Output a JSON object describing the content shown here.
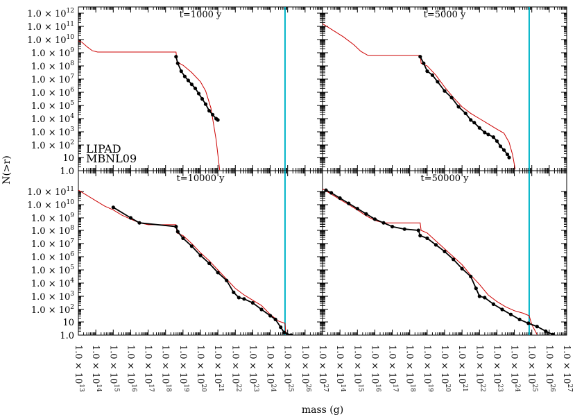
{
  "chart_data": {
    "type": "line",
    "title": "",
    "xlabel": "mass (g)",
    "ylabel": "N(>r)",
    "x_scale": "log",
    "y_scale": "log",
    "xlim_log10": [
      13,
      27
    ],
    "grid": false,
    "legend": [
      {
        "name": "LIPAD",
        "color": "#000000"
      },
      {
        "name": "MBNL09",
        "color": "#cc0000"
      }
    ],
    "panels": [
      {
        "title": "t=1000 y",
        "ylim_log10": [
          0,
          12.5
        ],
        "cutoff_mass_log10": 24.85,
        "yticks": [
          {
            "log": 0,
            "label": "1.0"
          },
          {
            "log": 1,
            "label": "10"
          },
          {
            "log": 2,
            "base": "1.0 × 10",
            "exp": "2"
          },
          {
            "log": 3,
            "base": "1.0 × 10",
            "exp": "3"
          },
          {
            "log": 4,
            "base": "1.0 × 10",
            "exp": "4"
          },
          {
            "log": 5,
            "base": "1.0 × 10",
            "exp": "5"
          },
          {
            "log": 6,
            "base": "1.0 × 10",
            "exp": "6"
          },
          {
            "log": 7,
            "base": "1.0 × 10",
            "exp": "7"
          },
          {
            "log": 8,
            "base": "1.0 × 10",
            "exp": "8"
          },
          {
            "log": 9,
            "base": "1.0 × 10",
            "exp": "9"
          },
          {
            "log": 10,
            "base": "1.0 × 10",
            "exp": "10"
          },
          {
            "log": 11,
            "base": "1.0 × 10",
            "exp": "11"
          },
          {
            "log": 12,
            "base": "1.0 × 10",
            "exp": "12"
          }
        ],
        "series": [
          {
            "name": "MBNL09",
            "points": [
              [
                13,
                9.9
              ],
              [
                13.2,
                9.8
              ],
              [
                13.5,
                9.45
              ],
              [
                13.8,
                9.15
              ],
              [
                14.1,
                9.05
              ],
              [
                15,
                9.05
              ],
              [
                16.5,
                9.05
              ],
              [
                18.6,
                9.05
              ],
              [
                18.65,
                8.3
              ],
              [
                19,
                8.05
              ],
              [
                19.5,
                7.5
              ],
              [
                20,
                6.8
              ],
              [
                20.3,
                6.1
              ],
              [
                20.6,
                4.8
              ],
              [
                20.9,
                2.4
              ],
              [
                21.1,
                0.05
              ]
            ]
          },
          {
            "name": "LIPAD",
            "points": [
              [
                18.6,
                8.7
              ],
              [
                18.7,
                8.2
              ],
              [
                18.9,
                7.6
              ],
              [
                19.1,
                7.2
              ],
              [
                19.3,
                6.9
              ],
              [
                19.5,
                6.6
              ],
              [
                19.7,
                6.3
              ],
              [
                19.9,
                5.9
              ],
              [
                20.1,
                5.5
              ],
              [
                20.3,
                5.1
              ],
              [
                20.5,
                4.6
              ],
              [
                20.7,
                4.3
              ],
              [
                20.9,
                4.0
              ],
              [
                21.0,
                3.9
              ]
            ]
          }
        ]
      },
      {
        "title": "t=5000 y",
        "ylim_log10": [
          0,
          12.5
        ],
        "cutoff_mass_log10": 24.85,
        "yticks": [],
        "series": [
          {
            "name": "MBNL09",
            "points": [
              [
                13,
                11.2
              ],
              [
                13.6,
                10.7
              ],
              [
                14.2,
                10.2
              ],
              [
                14.8,
                9.6
              ],
              [
                15.2,
                9.1
              ],
              [
                15.6,
                8.8
              ],
              [
                16.5,
                8.8
              ],
              [
                18.6,
                8.8
              ],
              [
                18.65,
                8.2
              ],
              [
                19,
                8.0
              ],
              [
                19.5,
                7.3
              ],
              [
                20,
                6.4
              ],
              [
                20.5,
                5.6
              ],
              [
                21,
                4.9
              ],
              [
                21.5,
                4.4
              ],
              [
                22,
                4.0
              ],
              [
                22.5,
                3.6
              ],
              [
                23,
                3.2
              ],
              [
                23.4,
                2.9
              ],
              [
                23.7,
                2.2
              ],
              [
                23.9,
                1.2
              ],
              [
                24.05,
                0.1
              ]
            ]
          },
          {
            "name": "LIPAD",
            "points": [
              [
                18.6,
                8.7
              ],
              [
                18.8,
                8.2
              ],
              [
                19.0,
                7.6
              ],
              [
                19.3,
                7.3
              ],
              [
                19.6,
                6.8
              ],
              [
                20.0,
                6.1
              ],
              [
                20.4,
                5.6
              ],
              [
                20.8,
                4.9
              ],
              [
                21.2,
                4.4
              ],
              [
                21.5,
                3.9
              ],
              [
                21.7,
                3.7
              ],
              [
                22.0,
                3.3
              ],
              [
                22.3,
                2.95
              ],
              [
                22.5,
                2.8
              ],
              [
                22.8,
                2.6
              ],
              [
                23.0,
                2.3
              ],
              [
                23.2,
                1.9
              ],
              [
                23.4,
                1.6
              ],
              [
                23.6,
                1.25
              ],
              [
                23.7,
                1.0
              ]
            ]
          }
        ]
      },
      {
        "title": "t=10000 y",
        "ylim_log10": [
          0,
          11.6
        ],
        "cutoff_mass_log10": 24.85,
        "yticks": [
          {
            "log": 0,
            "label": "1.0"
          },
          {
            "log": 1,
            "label": "10"
          },
          {
            "log": 2,
            "base": "1.0 × 10",
            "exp": "2"
          },
          {
            "log": 3,
            "base": "1.0 × 10",
            "exp": "3"
          },
          {
            "log": 4,
            "base": "1.0 × 10",
            "exp": "4"
          },
          {
            "log": 5,
            "base": "1.0 × 10",
            "exp": "5"
          },
          {
            "log": 6,
            "base": "1.0 × 10",
            "exp": "6"
          },
          {
            "log": 7,
            "base": "1.0 × 10",
            "exp": "7"
          },
          {
            "log": 8,
            "base": "1.0 × 10",
            "exp": "8"
          },
          {
            "log": 9,
            "base": "1.0 × 10",
            "exp": "9"
          },
          {
            "log": 10,
            "base": "1.0 × 10",
            "exp": "10"
          },
          {
            "log": 11,
            "base": "1.0 × 10",
            "exp": "11"
          }
        ],
        "series": [
          {
            "name": "MBNL09",
            "points": [
              [
                13,
                11.1
              ],
              [
                13.5,
                10.7
              ],
              [
                14,
                10.3
              ],
              [
                14.5,
                9.9
              ],
              [
                15,
                9.6
              ],
              [
                15.5,
                9.2
              ],
              [
                16,
                8.9
              ],
              [
                16.5,
                8.6
              ],
              [
                17,
                8.45
              ],
              [
                18.6,
                8.45
              ],
              [
                18.65,
                7.8
              ],
              [
                19,
                7.6
              ],
              [
                19.5,
                7.0
              ],
              [
                20,
                6.3
              ],
              [
                20.5,
                5.7
              ],
              [
                21,
                5.0
              ],
              [
                21.5,
                4.3
              ],
              [
                22,
                3.6
              ],
              [
                22.5,
                3.1
              ],
              [
                23,
                2.7
              ],
              [
                23.5,
                2.3
              ],
              [
                24,
                1.6
              ],
              [
                24.5,
                1.05
              ],
              [
                24.85,
                0.9
              ],
              [
                24.9,
                0.05
              ]
            ]
          },
          {
            "name": "LIPAD",
            "points": [
              [
                15.0,
                9.8
              ],
              [
                16.0,
                9.0
              ],
              [
                16.5,
                8.6
              ],
              [
                18.6,
                8.3
              ],
              [
                18.7,
                7.9
              ],
              [
                19.0,
                7.4
              ],
              [
                19.5,
                6.8
              ],
              [
                20.0,
                6.1
              ],
              [
                20.5,
                5.5
              ],
              [
                21.0,
                4.8
              ],
              [
                21.5,
                4.2
              ],
              [
                21.9,
                3.3
              ],
              [
                22.2,
                2.9
              ],
              [
                22.5,
                2.8
              ],
              [
                23.0,
                2.5
              ],
              [
                23.5,
                2.0
              ],
              [
                24.0,
                1.5
              ],
              [
                24.3,
                1.2
              ],
              [
                24.6,
                0.6
              ],
              [
                24.8,
                0.2
              ],
              [
                25.2,
                0.0
              ]
            ]
          }
        ]
      },
      {
        "title": "t=50000 y",
        "ylim_log10": [
          0,
          11.6
        ],
        "cutoff_mass_log10": 24.85,
        "yticks": [],
        "series": [
          {
            "name": "MBNL09",
            "points": [
              [
                13,
                11.2
              ],
              [
                13.5,
                10.8
              ],
              [
                14,
                10.4
              ],
              [
                14.5,
                10.0
              ],
              [
                15,
                9.6
              ],
              [
                15.5,
                9.15
              ],
              [
                16,
                8.8
              ],
              [
                16.5,
                8.6
              ],
              [
                18.6,
                8.6
              ],
              [
                18.65,
                8.0
              ],
              [
                19,
                7.8
              ],
              [
                19.5,
                7.2
              ],
              [
                20,
                6.6
              ],
              [
                20.5,
                6.0
              ],
              [
                21,
                5.4
              ],
              [
                21.5,
                4.6
              ],
              [
                22,
                3.9
              ],
              [
                22.5,
                3.1
              ],
              [
                23,
                2.6
              ],
              [
                23.5,
                2.2
              ],
              [
                24,
                1.9
              ],
              [
                24.5,
                1.7
              ],
              [
                24.85,
                1.5
              ],
              [
                25,
                0.8
              ],
              [
                25.3,
                0.05
              ]
            ]
          },
          {
            "name": "LIPAD",
            "points": [
              [
                13.2,
                11.1
              ],
              [
                13.5,
                10.9
              ],
              [
                14,
                10.5
              ],
              [
                14.5,
                10.1
              ],
              [
                15,
                9.7
              ],
              [
                15.5,
                9.3
              ],
              [
                16,
                8.9
              ],
              [
                16.5,
                8.6
              ],
              [
                17,
                8.3
              ],
              [
                17.7,
                8.1
              ],
              [
                18.5,
                8.0
              ],
              [
                18.6,
                7.6
              ],
              [
                19,
                7.4
              ],
              [
                19.5,
                6.9
              ],
              [
                20,
                6.4
              ],
              [
                20.5,
                5.8
              ],
              [
                21,
                5.1
              ],
              [
                21.5,
                4.5
              ],
              [
                21.8,
                3.6
              ],
              [
                22.0,
                3.0
              ],
              [
                22.3,
                2.9
              ],
              [
                22.8,
                2.4
              ],
              [
                23.3,
                2.0
              ],
              [
                23.8,
                1.6
              ],
              [
                24.3,
                1.2
              ],
              [
                24.8,
                0.9
              ],
              [
                25.3,
                0.65
              ],
              [
                25.8,
                0.3
              ],
              [
                26.2,
                0.05
              ]
            ]
          }
        ]
      }
    ],
    "xticks": [
      {
        "log": 13,
        "base": "1.0 × 10",
        "exp": "13"
      },
      {
        "log": 14,
        "base": "1.0 × 10",
        "exp": "14"
      },
      {
        "log": 15,
        "base": "1.0 × 10",
        "exp": "15"
      },
      {
        "log": 16,
        "base": "1.0 × 10",
        "exp": "16"
      },
      {
        "log": 17,
        "base": "1.0 × 10",
        "exp": "17"
      },
      {
        "log": 18,
        "base": "1.0 × 10",
        "exp": "18"
      },
      {
        "log": 19,
        "base": "1.0 × 10",
        "exp": "19"
      },
      {
        "log": 20,
        "base": "1.0 × 10",
        "exp": "20"
      },
      {
        "log": 21,
        "base": "1.0 × 10",
        "exp": "21"
      },
      {
        "log": 22,
        "base": "1.0 × 10",
        "exp": "22"
      },
      {
        "log": 23,
        "base": "1.0 × 10",
        "exp": "23"
      },
      {
        "log": 24,
        "base": "1.0 × 10",
        "exp": "24"
      },
      {
        "log": 25,
        "base": "1.0 × 10",
        "exp": "25"
      },
      {
        "log": 26,
        "base": "1.0 × 10",
        "exp": "26"
      },
      {
        "log": 27,
        "base": "1.0 × 10",
        "exp": "27"
      }
    ]
  },
  "colors": {
    "lipad": "#000000",
    "mbnl09": "#cc0000",
    "cutoff": "#00b5c8"
  }
}
